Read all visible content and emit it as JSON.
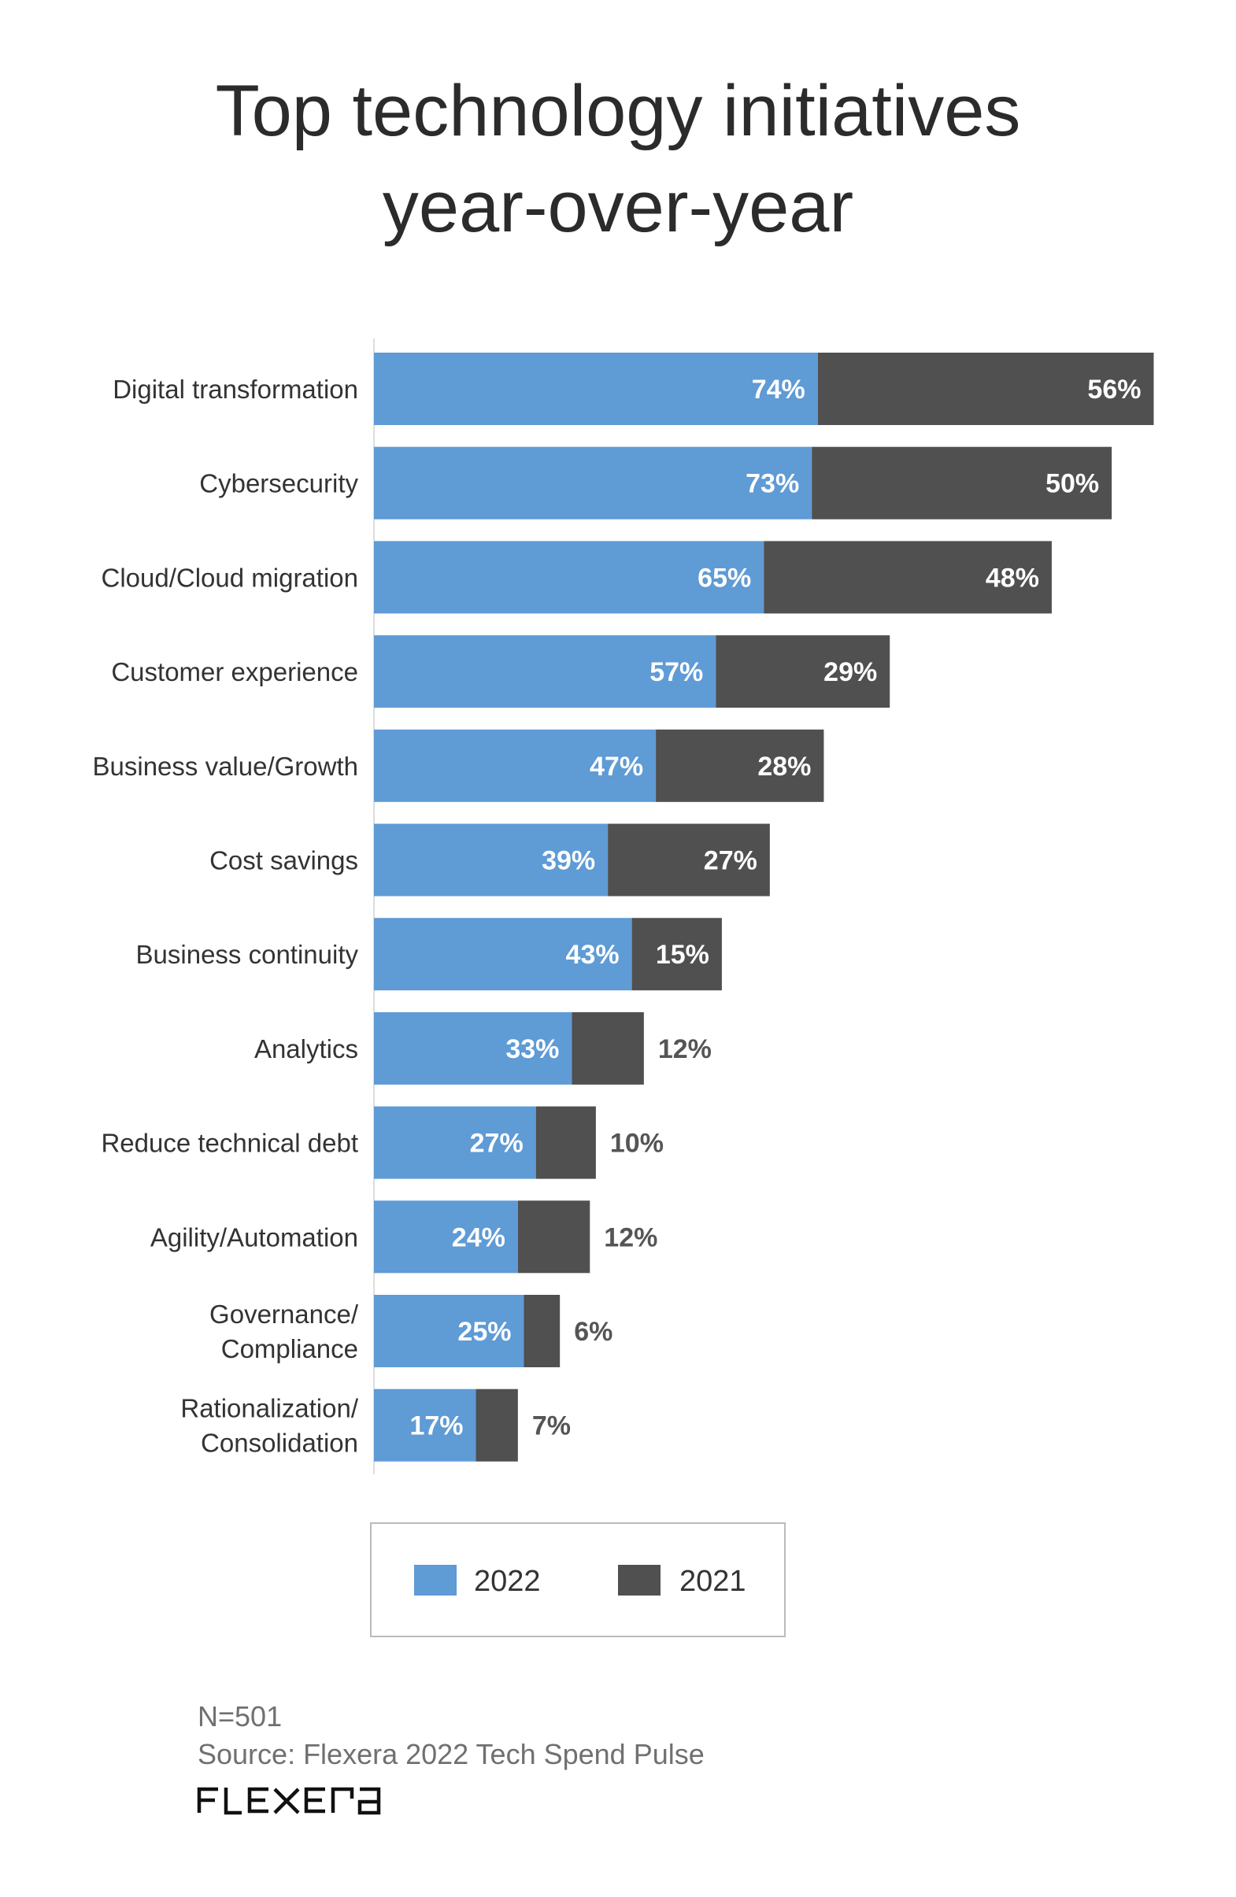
{
  "chart_data": {
    "type": "bar",
    "orientation": "horizontal",
    "stacked": true,
    "title": "Top technology initiatives year-over-year",
    "title_lines": [
      "Top technology initiatives",
      "year-over-year"
    ],
    "categories": [
      [
        "Digital transformation"
      ],
      [
        "Cybersecurity"
      ],
      [
        "Cloud/Cloud migration"
      ],
      [
        "Customer experience"
      ],
      [
        "Business value/Growth"
      ],
      [
        "Cost savings"
      ],
      [
        "Business continuity"
      ],
      [
        "Analytics"
      ],
      [
        "Reduce technical debt"
      ],
      [
        "Agility/Automation"
      ],
      [
        "Governance/",
        "Compliance"
      ],
      [
        "Rationalization/",
        "Consolidation"
      ]
    ],
    "series": [
      {
        "name": "2022",
        "color": "#5f9bd5",
        "values": [
          74,
          73,
          65,
          57,
          47,
          39,
          43,
          33,
          27,
          24,
          25,
          17
        ]
      },
      {
        "name": "2021",
        "color": "#505050",
        "values": [
          56,
          50,
          48,
          29,
          28,
          27,
          15,
          12,
          10,
          12,
          6,
          7
        ]
      }
    ],
    "value_suffix": "%",
    "xlabel": "",
    "ylabel": "",
    "grid": false,
    "legend": {
      "position": "bottom",
      "labels": [
        "2022",
        "2021"
      ]
    },
    "footnotes": [
      "N=501",
      "Source: Flexera 2022 Tech Spend Pulse"
    ],
    "logo": "flexera"
  }
}
